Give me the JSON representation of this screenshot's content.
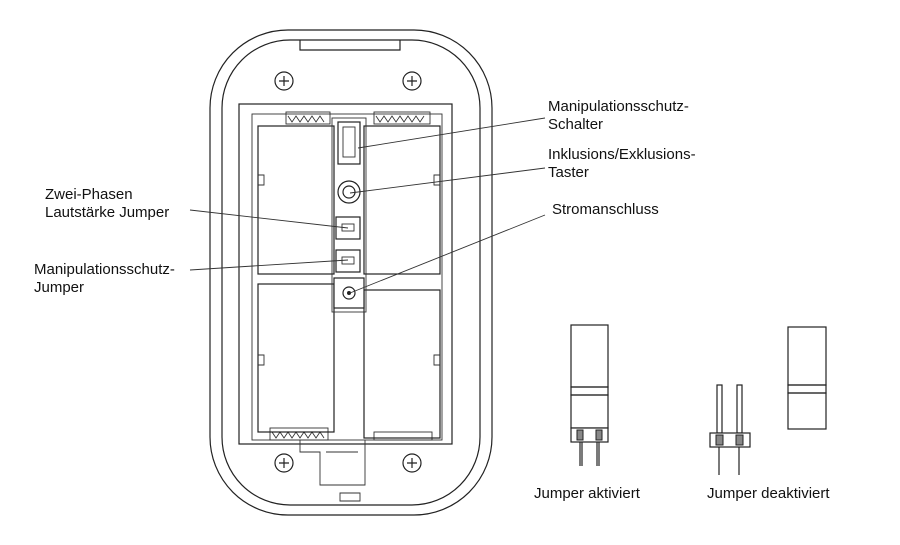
{
  "labels": {
    "tamper_switch": [
      "Manipulationsschutz-",
      "Schalter"
    ],
    "inclusion_button": [
      "Inklusions/Exklusions-",
      "Taster"
    ],
    "power_connector": "Stromanschluss",
    "volume_jumper": [
      "Zwei-Phasen",
      "Lautstärke Jumper"
    ],
    "tamper_jumper": [
      "Manipulationsschutz-",
      "Jumper"
    ],
    "jumper_activated": "Jumper aktiviert",
    "jumper_deactivated": "Jumper deaktiviert"
  }
}
